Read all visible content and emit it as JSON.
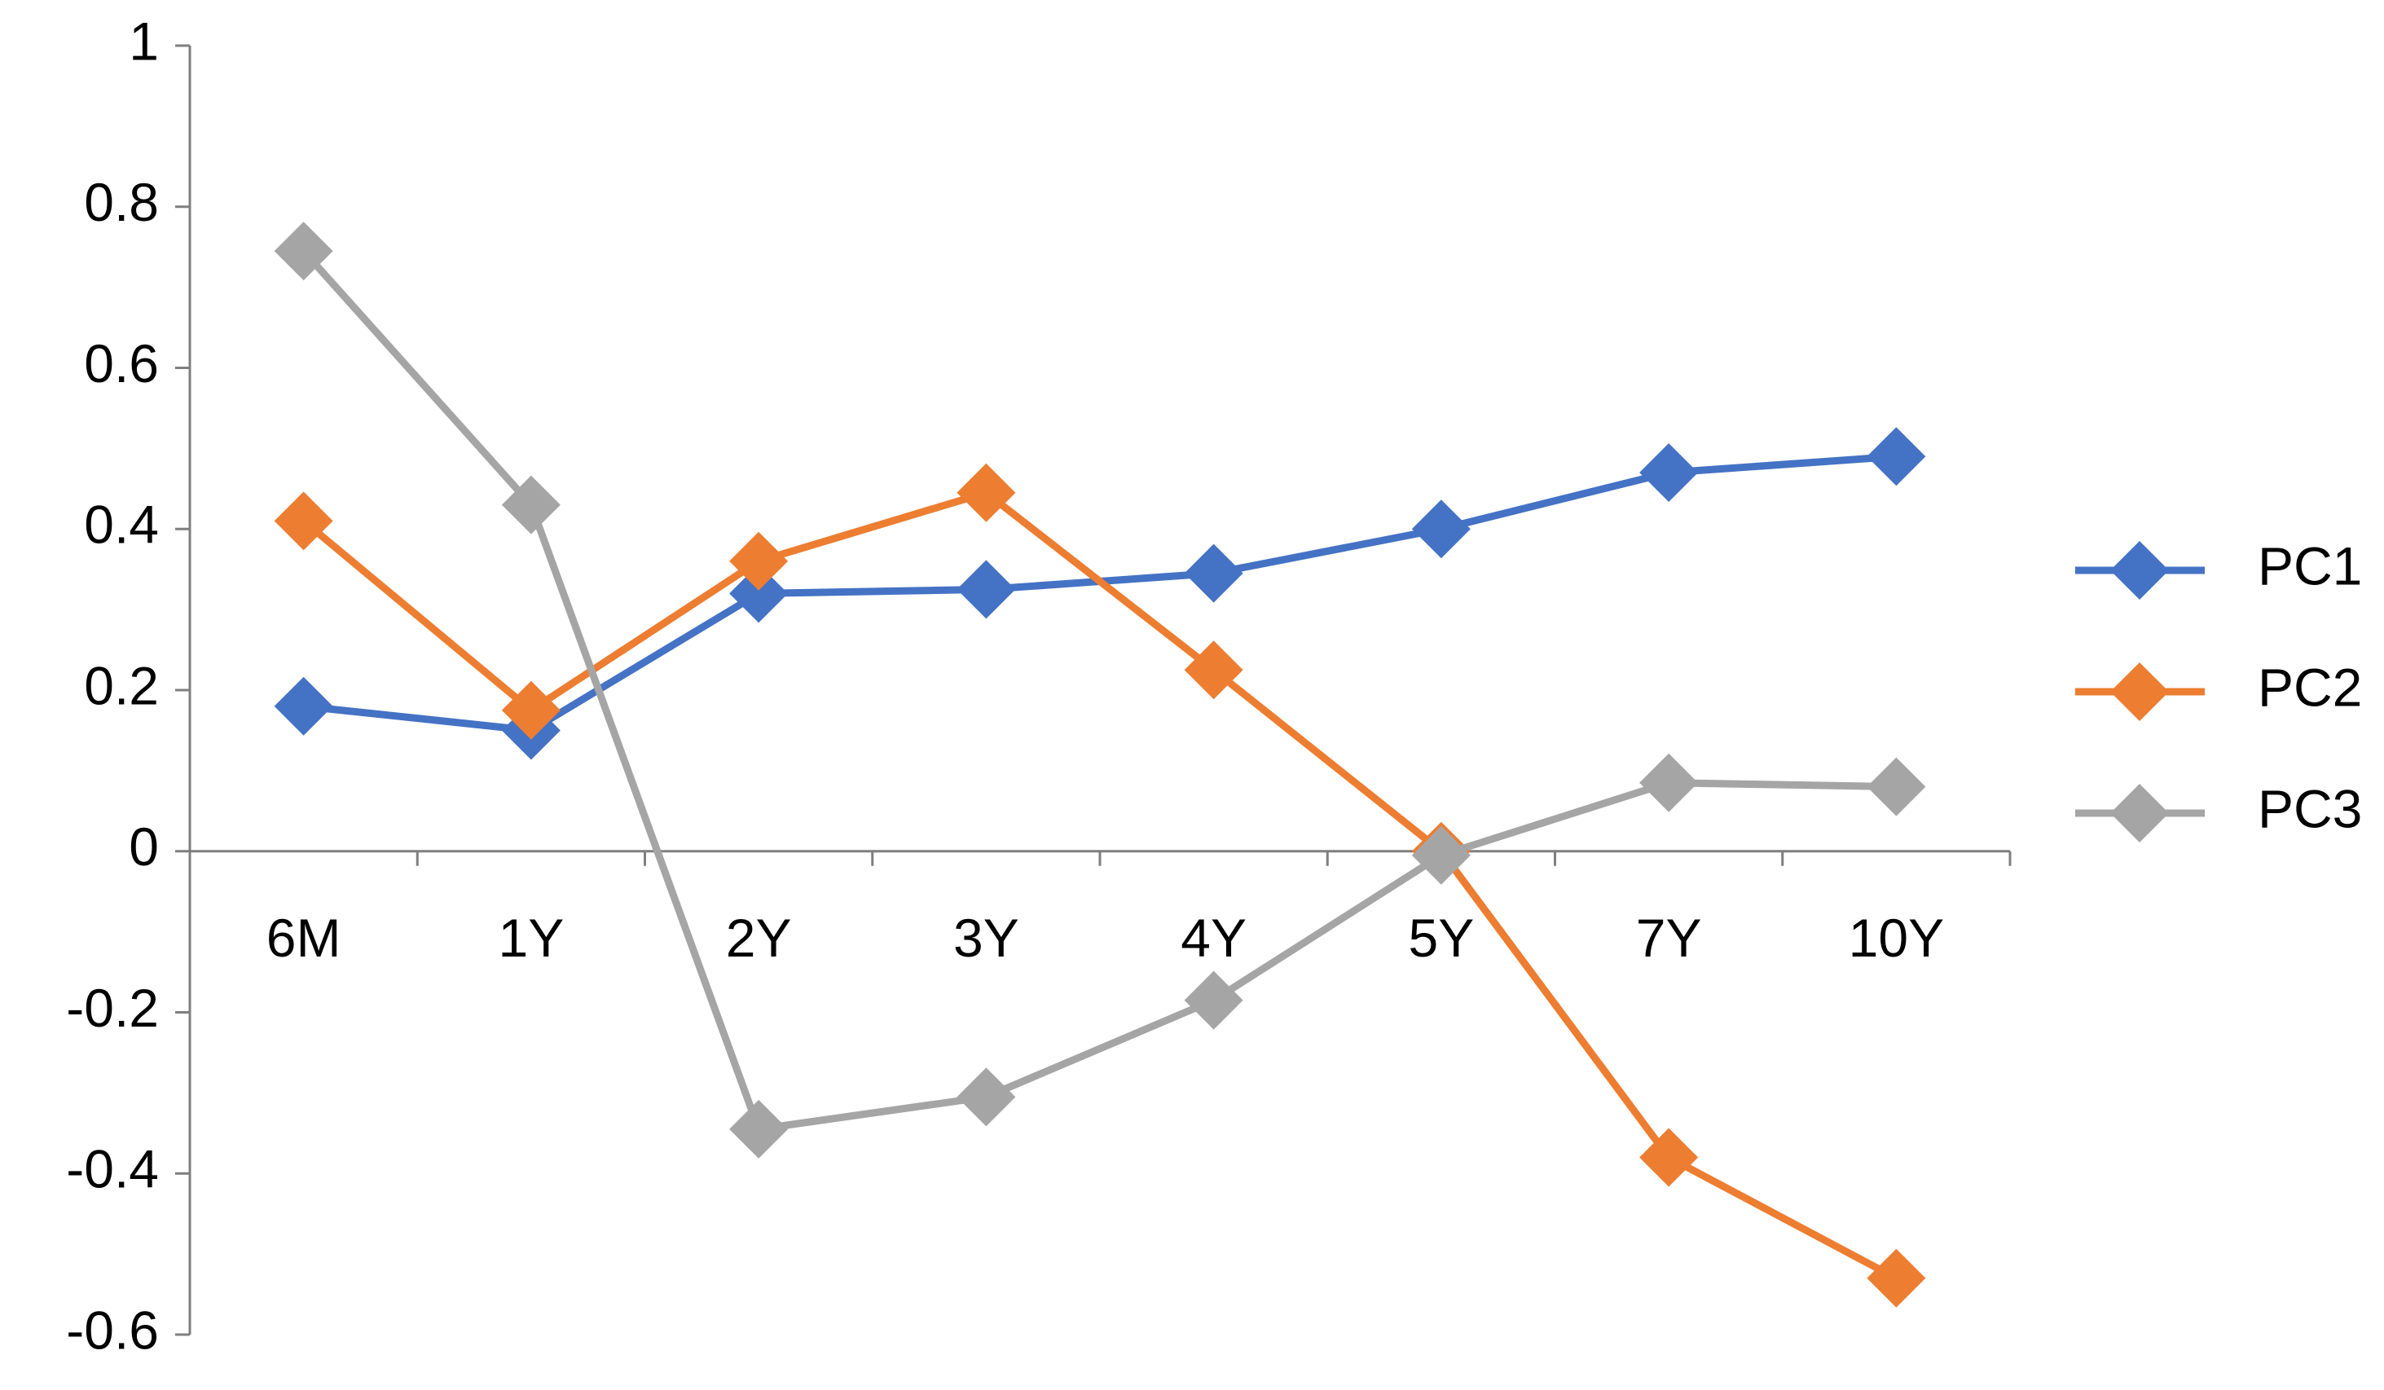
{
  "chart_data": {
    "type": "line",
    "categories": [
      "6M",
      "1Y",
      "2Y",
      "3Y",
      "4Y",
      "5Y",
      "7Y",
      "10Y"
    ],
    "series": [
      {
        "name": "PC1",
        "color": "#4472c4",
        "values": [
          0.18,
          0.15,
          0.32,
          0.325,
          0.345,
          0.4,
          0.47,
          0.49
        ]
      },
      {
        "name": "PC2",
        "color": "#ed7d31",
        "values": [
          0.41,
          0.175,
          0.36,
          0.445,
          0.225,
          0.0,
          -0.38,
          -0.53
        ]
      },
      {
        "name": "PC3",
        "color": "#a5a5a5",
        "values": [
          0.745,
          0.43,
          -0.345,
          -0.305,
          -0.185,
          -0.005,
          0.085,
          0.08
        ]
      }
    ],
    "ylim": [
      -0.6,
      1
    ],
    "yticks": [
      -0.6,
      -0.4,
      -0.2,
      0,
      0.2,
      0.4,
      0.6,
      0.8,
      1
    ],
    "grid": false,
    "legend": "right",
    "marker": "diamond"
  }
}
